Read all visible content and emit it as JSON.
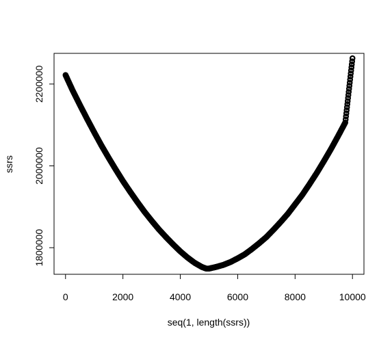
{
  "chart_data": {
    "type": "scatter",
    "title": "",
    "xlabel": "seq(1, length(ssrs))",
    "ylabel": "ssrs",
    "xlim": [
      -400,
      10400
    ],
    "ylim": [
      1735000,
      2275000
    ],
    "x_ticks": [
      0,
      2000,
      4000,
      6000,
      8000,
      10000
    ],
    "x_tick_labels": [
      "0",
      "2000",
      "4000",
      "6000",
      "8000",
      "10000"
    ],
    "y_ticks": [
      1800000,
      2000000,
      2200000
    ],
    "y_tick_labels": [
      "1800000",
      "2000000",
      "2200000"
    ],
    "grid": false,
    "legend": "none",
    "series": [
      {
        "marker": "open-circle",
        "color": "#000000",
        "x": [
          1,
          250,
          500,
          750,
          1000,
          1250,
          1500,
          1750,
          2000,
          2250,
          2500,
          2750,
          3000,
          3250,
          3500,
          3750,
          4000,
          4250,
          4500,
          4750,
          4900,
          5000,
          5250,
          5500,
          5750,
          6000,
          6250,
          6500,
          6750,
          7000,
          7250,
          7500,
          7750,
          8000,
          8250,
          8500,
          8750,
          9000,
          9250,
          9500,
          9750,
          10000
        ],
        "y": [
          2222000,
          2184000,
          2149000,
          2115000,
          2082000,
          2050000,
          2020000,
          1991000,
          1963000,
          1937000,
          1912000,
          1888000,
          1866000,
          1845000,
          1826000,
          1808000,
          1791000,
          1776000,
          1763000,
          1753000,
          1749000,
          1749000,
          1753000,
          1758000,
          1765000,
          1774000,
          1784000,
          1797000,
          1811000,
          1826000,
          1844000,
          1863000,
          1883000,
          1906000,
          1929000,
          1955000,
          1982000,
          2011000,
          2041000,
          2073000,
          2106000,
          2263000
        ]
      }
    ]
  }
}
